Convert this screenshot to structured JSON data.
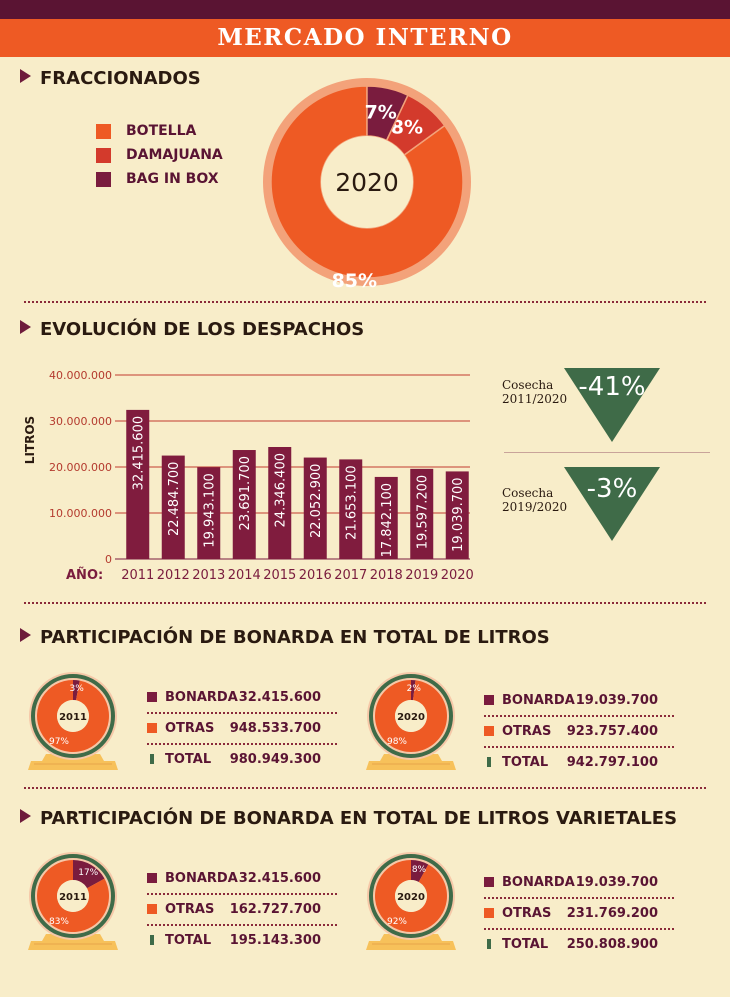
{
  "header": {
    "title": "MERCADO INTERNO"
  },
  "colors": {
    "botella": "#ee5a24",
    "damajuana": "#d33a2c",
    "bagbox": "#7a1c3e",
    "bar": "#801c3e",
    "green": "#3f6b48",
    "accent": "#ee5a24"
  },
  "sections": {
    "fraccionados": "FRACCIONADOS",
    "evolucion": "EVOLUCIÓN DE LOS DESPACHOS",
    "participacion_total": "PARTICIPACIÓN DE BONARDA EN TOTAL DE LITROS",
    "participacion_varietales": "PARTICIPACIÓN DE BONARDA EN TOTAL DE LITROS VARIETALES"
  },
  "chart_data": [
    {
      "type": "pie",
      "center_label": "2020",
      "categories": [
        "BOTELLA",
        "DAMAJUANA",
        "BAG IN BOX"
      ],
      "values": [
        85,
        8,
        7
      ],
      "labels": [
        "85%",
        "8%",
        "7%"
      ]
    },
    {
      "type": "bar",
      "xlabel": "AÑO:",
      "ylabel": "LITROS",
      "categories": [
        "2011",
        "2012",
        "2013",
        "2014",
        "2015",
        "2016",
        "2017",
        "2018",
        "2019",
        "2020"
      ],
      "values": [
        32415600,
        22484700,
        19943100,
        23691700,
        24346400,
        22052900,
        21653100,
        17842100,
        19597200,
        19039700
      ],
      "value_labels": [
        "32.415.600",
        "22.484.700",
        "19.943.100",
        "23.691.700",
        "24.346.400",
        "22.052.900",
        "21.653.100",
        "17.842.100",
        "19.597.200",
        "19.039.700"
      ],
      "yticks": [
        "40.000.000",
        "30.000.000",
        "20.000.000",
        "10.000.000",
        "0"
      ],
      "ytick_values": [
        40000000,
        30000000,
        20000000,
        10000000,
        0
      ],
      "ylim": [
        0,
        40000000
      ],
      "grid": true
    },
    {
      "type": "pie",
      "center_label": "2011",
      "categories": [
        "BONARDA",
        "OTRAS"
      ],
      "values": [
        3,
        97
      ],
      "labels": [
        "3%",
        "97%"
      ]
    },
    {
      "type": "pie",
      "center_label": "2020",
      "categories": [
        "BONARDA",
        "OTRAS"
      ],
      "values": [
        2,
        98
      ],
      "labels": [
        "2%",
        "98%"
      ]
    },
    {
      "type": "pie",
      "center_label": "2011",
      "categories": [
        "BONARDA",
        "OTRAS"
      ],
      "values": [
        17,
        83
      ],
      "labels": [
        "17%",
        "83%"
      ]
    },
    {
      "type": "pie",
      "center_label": "2020",
      "categories": [
        "BONARDA",
        "OTRAS"
      ],
      "values": [
        8,
        92
      ],
      "labels": [
        "8%",
        "92%"
      ]
    }
  ],
  "comparisons": [
    {
      "label_line1": "Cosecha",
      "label_line2": "2011/2020",
      "value": "-41%"
    },
    {
      "label_line1": "Cosecha",
      "label_line2": "2019/2020",
      "value": "-3%"
    }
  ],
  "legends": [
    {
      "rows": [
        {
          "name": "BONARDA",
          "value": "32.415.600"
        },
        {
          "name": "OTRAS",
          "value": "948.533.700"
        },
        {
          "name": "TOTAL",
          "value": "980.949.300"
        }
      ]
    },
    {
      "rows": [
        {
          "name": "BONARDA",
          "value": "19.039.700"
        },
        {
          "name": "OTRAS",
          "value": "923.757.400"
        },
        {
          "name": "TOTAL",
          "value": "942.797.100"
        }
      ]
    },
    {
      "rows": [
        {
          "name": "BONARDA",
          "value": "32.415.600"
        },
        {
          "name": "OTRAS",
          "value": "162.727.700"
        },
        {
          "name": "TOTAL",
          "value": "195.143.300"
        }
      ]
    },
    {
      "rows": [
        {
          "name": "BONARDA",
          "value": "19.039.700"
        },
        {
          "name": "OTRAS",
          "value": "231.769.200"
        },
        {
          "name": "TOTAL",
          "value": "250.808.900"
        }
      ]
    }
  ]
}
